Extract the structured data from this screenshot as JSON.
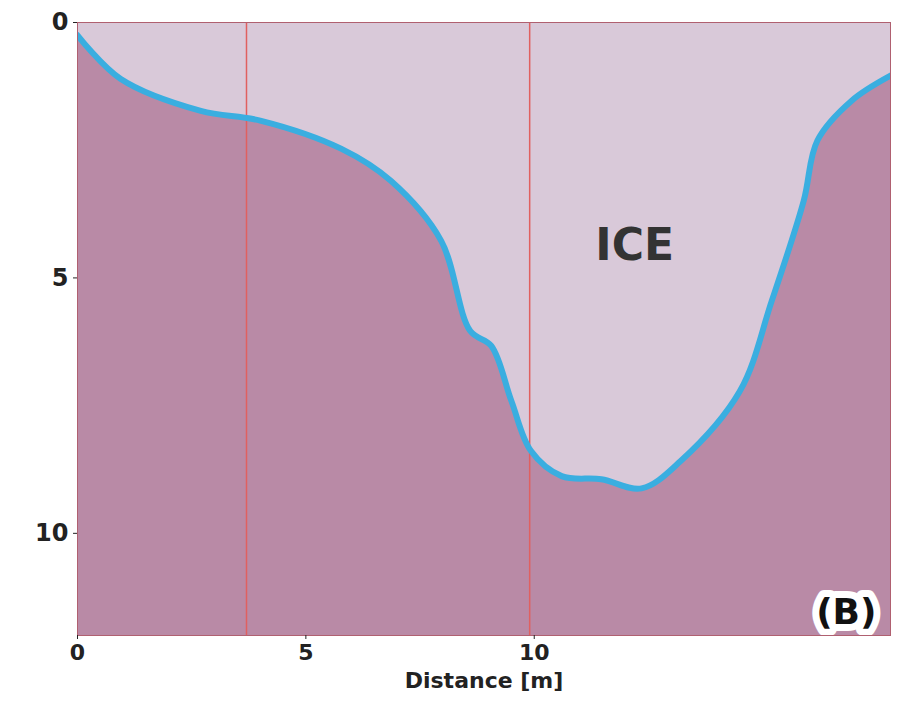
{
  "chart_data": {
    "type": "line",
    "x_label": "Distance [m]",
    "x": [
      0,
      0.94,
      2.7,
      4.0,
      5.77,
      6.86,
      7.96,
      8.6,
      9.06,
      9.5,
      9.93,
      10.6,
      11.47,
      12.35,
      13.2,
      14.5,
      15.2,
      15.9,
      16.2,
      16.95,
      17.8
    ],
    "values": [
      0.25,
      1.1,
      1.73,
      1.92,
      2.47,
      3.1,
      4.27,
      6.04,
      6.33,
      7.41,
      8.39,
      8.88,
      8.94,
      9.12,
      8.59,
      7.22,
      5.45,
      3.49,
      2.31,
      1.53,
      1.04
    ],
    "color": "#3aaee0",
    "xlim": [
      0,
      17.8
    ],
    "ylim": [
      0,
      12
    ],
    "xticks": [
      0,
      5,
      10
    ],
    "yticks": [
      0,
      5,
      10
    ],
    "grid": false,
    "vertical_lines": [
      3.7,
      9.9
    ],
    "annotations": [
      {
        "text": "ICE",
        "x": 12.2,
        "y": 4.37
      }
    ],
    "panel_label": "(B)"
  }
}
